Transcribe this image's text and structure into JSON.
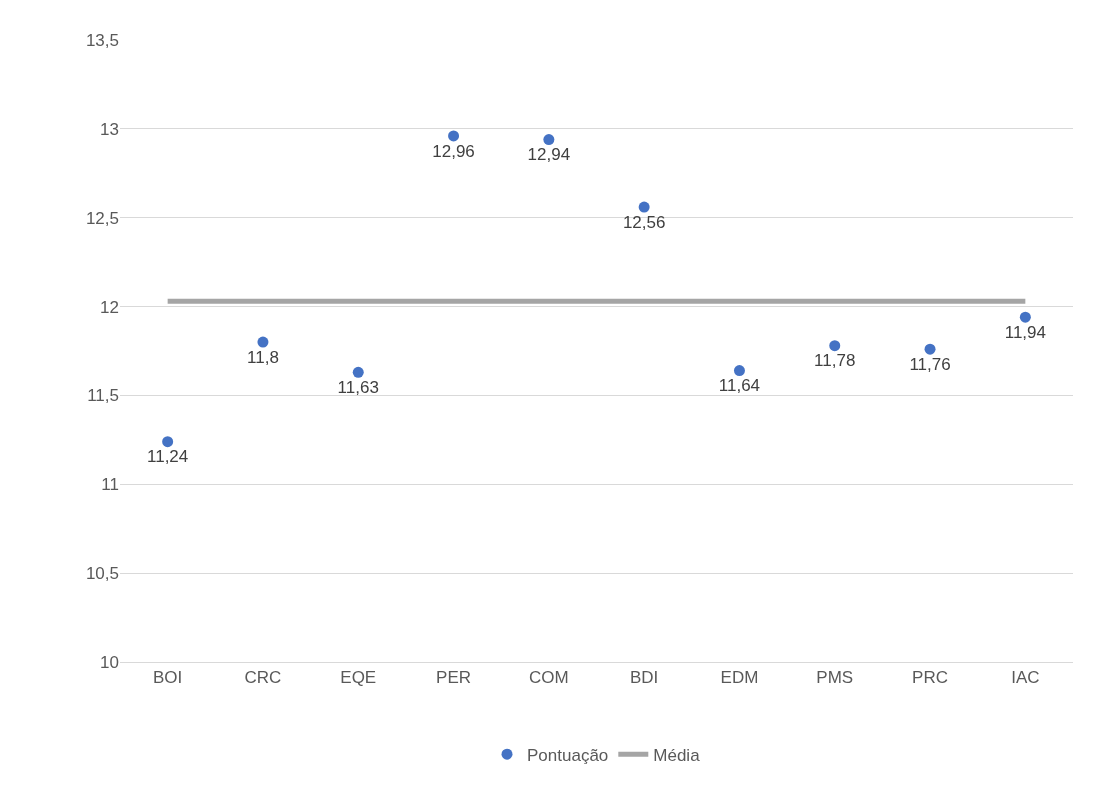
{
  "chart_data": {
    "type": "scatter",
    "categories": [
      "BOI",
      "CRC",
      "EQE",
      "PER",
      "COM",
      "BDI",
      "EDM",
      "PMS",
      "PRC",
      "IAC"
    ],
    "series": [
      {
        "name": "Pontuação",
        "color": "#4472c4",
        "marker": "circle",
        "values": [
          11.24,
          11.8,
          11.63,
          12.96,
          12.94,
          12.56,
          11.64,
          11.78,
          11.76,
          11.94
        ],
        "value_labels": [
          "11,24",
          "11,8",
          "11,63",
          "12,96",
          "12,94",
          "12,56",
          "11,64",
          "11,78",
          "11,76",
          "11,94"
        ]
      },
      {
        "name": "Média",
        "type": "line",
        "color": "#a5a5a5",
        "marker": "none",
        "line_style": "solid",
        "values": [
          12.03,
          12.03,
          12.03,
          12.03,
          12.03,
          12.03,
          12.03,
          12.03,
          12.03,
          12.03
        ]
      }
    ],
    "ylim": [
      10,
      13.5
    ],
    "yticks": [
      10,
      {
        "value": 10.5,
        "label": "10,5"
      },
      11,
      {
        "value": 11.5,
        "label": "11,5"
      },
      12,
      {
        "value": 12.5,
        "label": "12,5"
      },
      13,
      {
        "value": 13.5,
        "label": "13,5"
      }
    ],
    "grid": "y",
    "legend": "bottom"
  }
}
